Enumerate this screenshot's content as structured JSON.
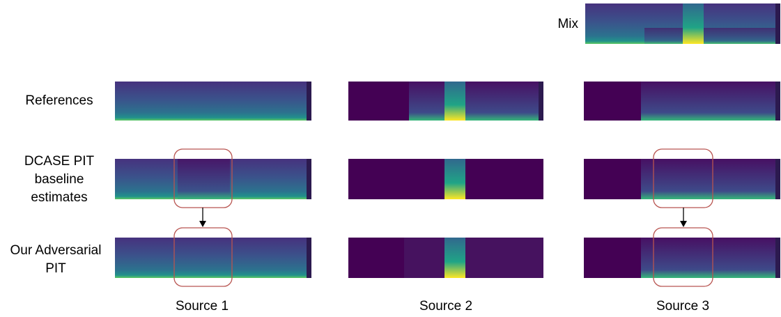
{
  "mix_label": "Mix",
  "rows": [
    {
      "label": [
        "References"
      ]
    },
    {
      "label": [
        "DCASE PIT",
        "baseline",
        "estimates"
      ]
    },
    {
      "label": [
        "Our Adversarial",
        "PIT"
      ]
    }
  ],
  "columns": [
    "Source 1",
    "Source 2",
    "Source 3"
  ]
}
